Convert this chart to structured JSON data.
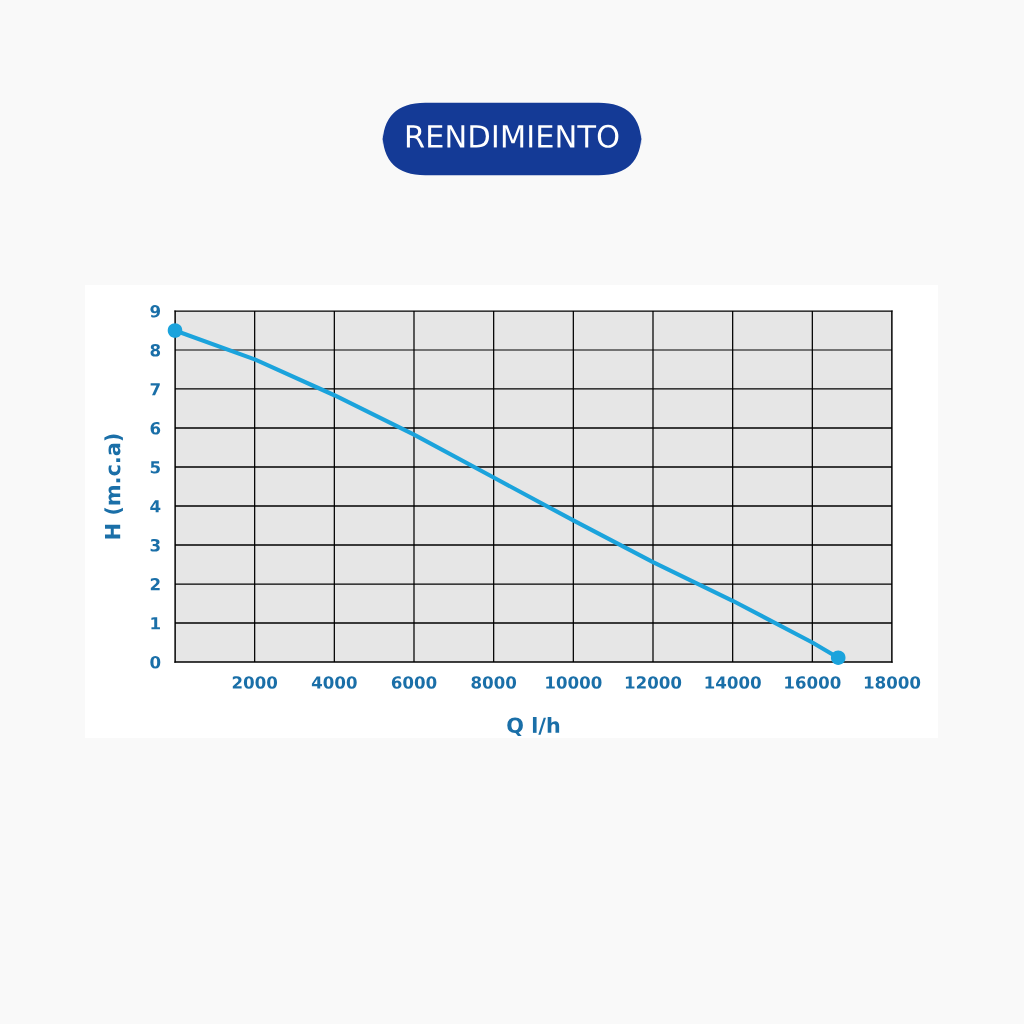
{
  "chart_data": {
    "type": "line",
    "title": "RENDIMIENTO",
    "xlabel": "Q l/h",
    "ylabel": "H (m.c.a)",
    "series": [
      {
        "color": "#1ba3dc",
        "x": [
          0,
          2000,
          4000,
          6000,
          8000,
          10000,
          12000,
          14000,
          16000,
          16650
        ],
        "values": [
          8.5,
          7.76,
          6.84,
          5.83,
          4.73,
          3.63,
          2.56,
          1.57,
          0.5,
          0.11
        ]
      },
      {
        "type": "scatter",
        "color": "#1ba3dc",
        "x": [
          0,
          16650
        ],
        "values": [
          8.5,
          0.11
        ]
      }
    ],
    "xlim": [
      0,
      18000
    ],
    "ylim": [
      0,
      9
    ],
    "xticks": [
      {
        "value": 0,
        "label": null
      },
      2000,
      4000,
      6000,
      8000,
      10000,
      12000,
      14000,
      16000,
      18000
    ],
    "yticks": [
      0,
      1,
      2,
      3,
      4,
      5,
      6,
      7,
      8,
      9
    ],
    "grid": true
  }
}
